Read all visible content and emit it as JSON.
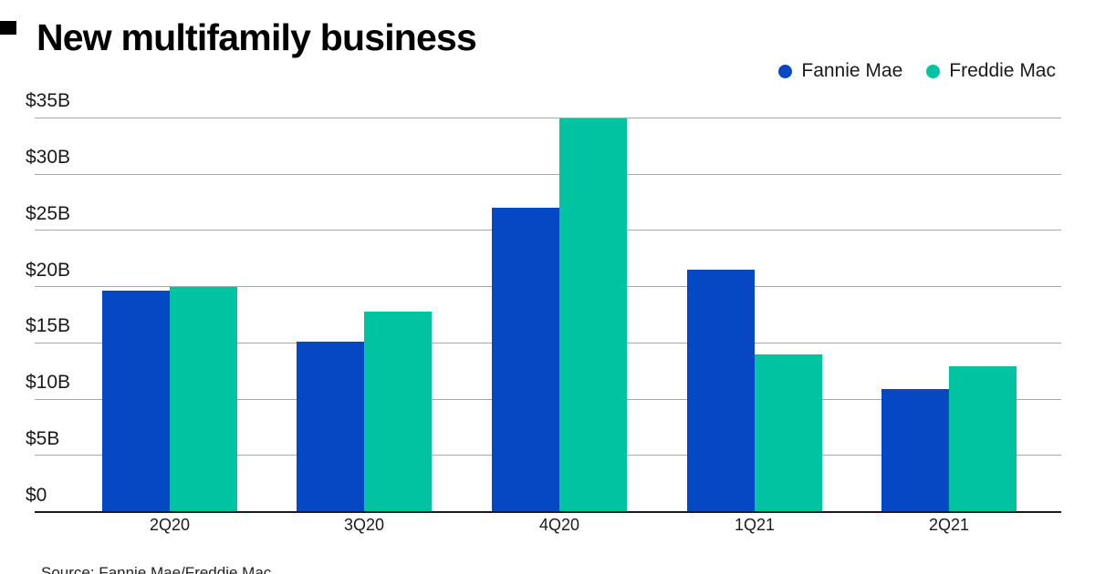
{
  "title": "New multifamily business",
  "legend": [
    {
      "label": "Fannie Mae",
      "color": "#0648c4"
    },
    {
      "label": "Freddie Mac",
      "color": "#00c3a2"
    }
  ],
  "source": "Source: Fannie Mae/Freddie Mac",
  "chart_data": {
    "type": "bar",
    "title": "New multifamily business",
    "categories": [
      "2Q20",
      "3Q20",
      "4Q20",
      "1Q21",
      "2Q21"
    ],
    "series": [
      {
        "name": "Fannie Mae",
        "color": "#0648c4",
        "values": [
          19.6,
          15.1,
          27.0,
          21.5,
          10.9
        ]
      },
      {
        "name": "Freddie Mac",
        "color": "#00c3a2",
        "values": [
          20.0,
          17.8,
          34.9,
          14.0,
          12.9
        ]
      }
    ],
    "xlabel": "",
    "ylabel": "",
    "ylim": [
      0,
      35
    ],
    "y_ticks": [
      {
        "value": 35,
        "label": "$35B"
      },
      {
        "value": 30,
        "label": "$30B"
      },
      {
        "value": 25,
        "label": "$25B"
      },
      {
        "value": 20,
        "label": "$20B"
      },
      {
        "value": 15,
        "label": "$15B"
      },
      {
        "value": 10,
        "label": "$10B"
      },
      {
        "value": 5,
        "label": "$5B"
      },
      {
        "value": 0,
        "label": "$0"
      }
    ],
    "grid": true,
    "gridline_color": "#a8a8a8",
    "legend_position": "top-right"
  }
}
